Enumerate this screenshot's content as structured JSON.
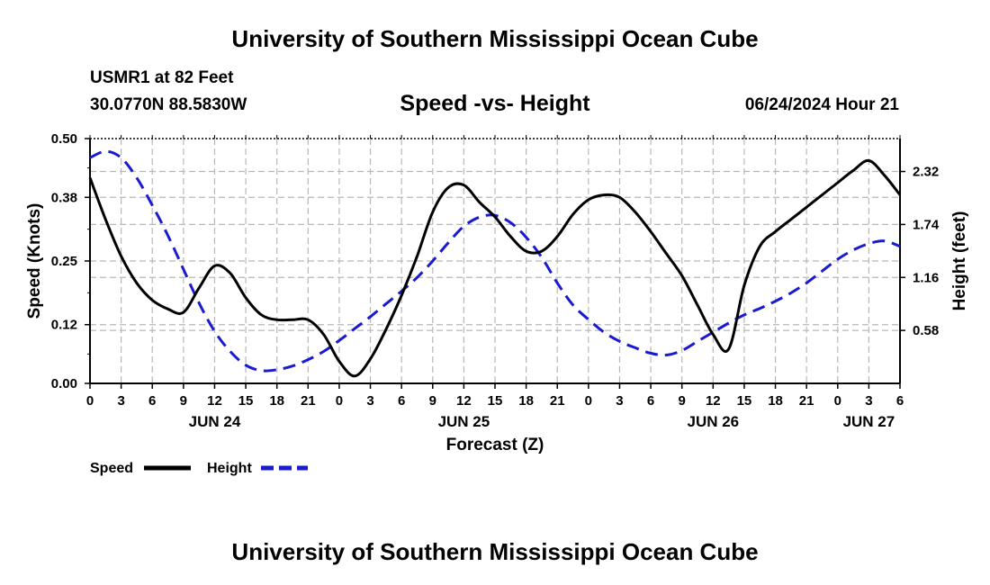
{
  "header": {
    "title": "University of Southern Mississippi Ocean Cube",
    "station": "USMR1 at 82 Feet",
    "coords": "30.0770N  88.5830W",
    "subtitle": "Speed -vs- Height",
    "datetime": "06/24/2024 Hour 21"
  },
  "footer": {
    "title": "University of Southern Mississippi Ocean Cube"
  },
  "colors": {
    "speed": "#000000",
    "height": "#1a1ad0",
    "grid": "#b8b8b8"
  },
  "chart_data": {
    "type": "line",
    "title": "Speed -vs- Height",
    "xlabel": "Forecast (Z)",
    "ylabel": "Speed (Knots)",
    "y2label": "Height (feet)",
    "xlim": [
      0,
      78
    ],
    "ylim": [
      0,
      0.5
    ],
    "y2lim": [
      0,
      2.68
    ],
    "x_ticks": [
      0,
      3,
      6,
      9,
      12,
      15,
      18,
      21,
      24,
      27,
      30,
      33,
      36,
      39,
      42,
      45,
      48,
      51,
      54,
      57,
      60,
      63,
      66,
      69,
      72,
      75,
      78
    ],
    "x_tick_labels": [
      "0",
      "3",
      "6",
      "9",
      "12",
      "15",
      "18",
      "21",
      "0",
      "3",
      "6",
      "9",
      "12",
      "15",
      "18",
      "21",
      "0",
      "3",
      "6",
      "9",
      "12",
      "15",
      "18",
      "21",
      "0",
      "3",
      "6"
    ],
    "date_labels": [
      {
        "x": 12,
        "label": "JUN 24"
      },
      {
        "x": 36,
        "label": "JUN 25"
      },
      {
        "x": 60,
        "label": "JUN 26"
      },
      {
        "x": 75,
        "label": "JUN 27"
      }
    ],
    "y_ticks": [
      0.0,
      0.12,
      0.25,
      0.38,
      0.5
    ],
    "y_tick_labels": [
      "0.00",
      "0.12",
      "0.25",
      "0.38",
      "0.50"
    ],
    "y2_ticks": [
      0.58,
      1.16,
      1.74,
      2.32
    ],
    "y2_tick_labels": [
      "0.58",
      "1.16",
      "1.74",
      "2.32"
    ],
    "grid": true,
    "legend_position": "bottom-left",
    "series": [
      {
        "name": "Speed",
        "axis": "left",
        "style": "solid",
        "x": [
          0,
          1.5,
          3,
          4.5,
          6,
          7.5,
          9,
          10.5,
          12,
          13.5,
          15,
          16.5,
          18,
          19.5,
          21,
          22.5,
          24,
          25.5,
          27,
          28.5,
          30,
          31.5,
          33,
          34.5,
          36,
          37.5,
          39,
          40.5,
          42,
          43.5,
          45,
          46.5,
          48,
          49.5,
          51,
          52.5,
          54,
          55.5,
          57,
          58.5,
          60,
          61.5,
          63,
          64.5,
          66,
          67.5,
          69,
          70.5,
          72,
          73.5,
          75,
          76.5,
          78
        ],
        "values": [
          0.42,
          0.335,
          0.26,
          0.205,
          0.17,
          0.152,
          0.145,
          0.195,
          0.24,
          0.225,
          0.175,
          0.14,
          0.13,
          0.13,
          0.13,
          0.1,
          0.045,
          0.015,
          0.05,
          0.11,
          0.18,
          0.26,
          0.35,
          0.4,
          0.405,
          0.37,
          0.34,
          0.3,
          0.27,
          0.27,
          0.3,
          0.345,
          0.375,
          0.385,
          0.38,
          0.35,
          0.31,
          0.265,
          0.22,
          0.16,
          0.1,
          0.07,
          0.2,
          0.28,
          0.31,
          0.335,
          0.36,
          0.385,
          0.41,
          0.435,
          0.455,
          0.425,
          0.385
        ]
      },
      {
        "name": "Height",
        "axis": "right",
        "style": "dashed",
        "x": [
          0,
          1.5,
          3,
          4.5,
          6,
          7.5,
          9,
          10.5,
          12,
          13.5,
          15,
          16.5,
          18,
          19.5,
          21,
          22.5,
          24,
          25.5,
          27,
          28.5,
          30,
          31.5,
          33,
          34.5,
          36,
          37.5,
          39,
          40.5,
          42,
          43.5,
          45,
          46.5,
          48,
          49.5,
          51,
          52.5,
          54,
          55.5,
          57,
          58.5,
          60,
          61.5,
          63,
          64.5,
          66,
          67.5,
          69,
          70.5,
          72,
          73.5,
          75,
          76.5,
          78
        ],
        "values": [
          2.47,
          2.54,
          2.47,
          2.25,
          1.95,
          1.62,
          1.25,
          0.88,
          0.57,
          0.35,
          0.2,
          0.14,
          0.15,
          0.19,
          0.26,
          0.35,
          0.47,
          0.6,
          0.73,
          0.87,
          1.01,
          1.16,
          1.34,
          1.54,
          1.72,
          1.82,
          1.84,
          1.76,
          1.6,
          1.38,
          1.1,
          0.86,
          0.7,
          0.56,
          0.46,
          0.39,
          0.33,
          0.31,
          0.36,
          0.46,
          0.56,
          0.66,
          0.75,
          0.82,
          0.9,
          0.99,
          1.1,
          1.23,
          1.36,
          1.46,
          1.53,
          1.56,
          1.5
        ]
      }
    ],
    "legend": [
      {
        "label": "Speed",
        "style": "solid"
      },
      {
        "label": "Height",
        "style": "dashed"
      }
    ]
  }
}
